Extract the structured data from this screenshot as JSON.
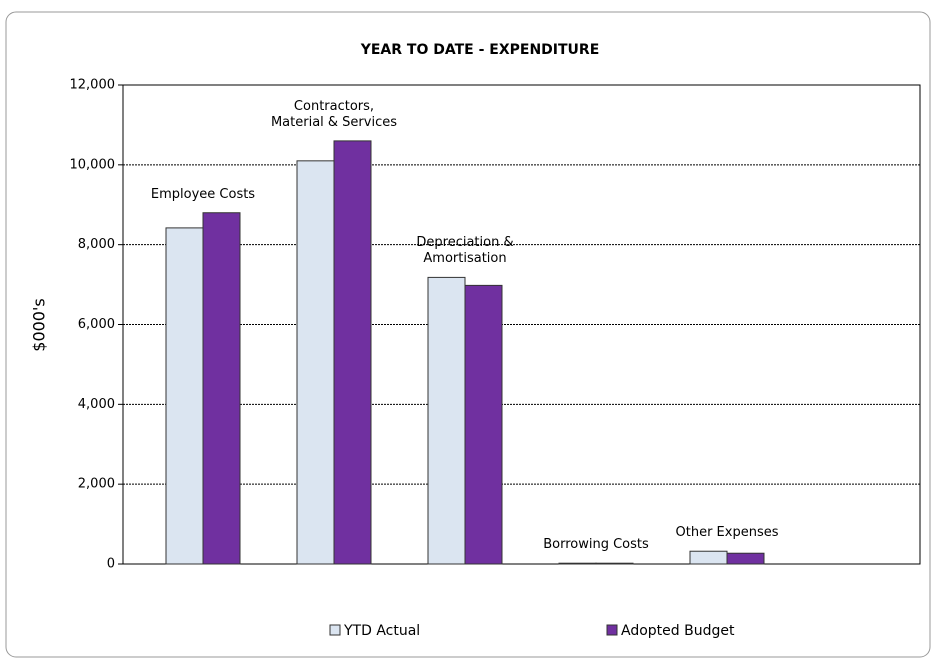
{
  "chart_data": {
    "type": "bar",
    "title": "YEAR TO DATE - EXPENDITURE",
    "y_label": "$000's",
    "categories": [
      "Employee Costs",
      "Contractors, Material & Services",
      "Depreciation & Amortisation",
      "Borrowing Costs",
      "Other Expenses"
    ],
    "series": [
      {
        "name": "YTD Actual",
        "color": "#dbe5f1",
        "values": [
          8420,
          10100,
          7180,
          20,
          320
        ]
      },
      {
        "name": "Adopted Budget",
        "color": "#7030a0",
        "values": [
          8800,
          10600,
          6980,
          20,
          270
        ]
      }
    ],
    "ylim": [
      0,
      12000
    ],
    "yticks": [
      0,
      {
        "value": 2000,
        "label": "2,000"
      },
      {
        "value": 4000,
        "label": "4,000"
      },
      {
        "value": 6000,
        "label": "6,000"
      },
      {
        "value": 8000,
        "label": "8,000"
      },
      {
        "value": 10000,
        "label": "10,000"
      },
      {
        "value": 12000,
        "label": "12,000"
      }
    ],
    "grid": true,
    "legend": "bottom"
  }
}
